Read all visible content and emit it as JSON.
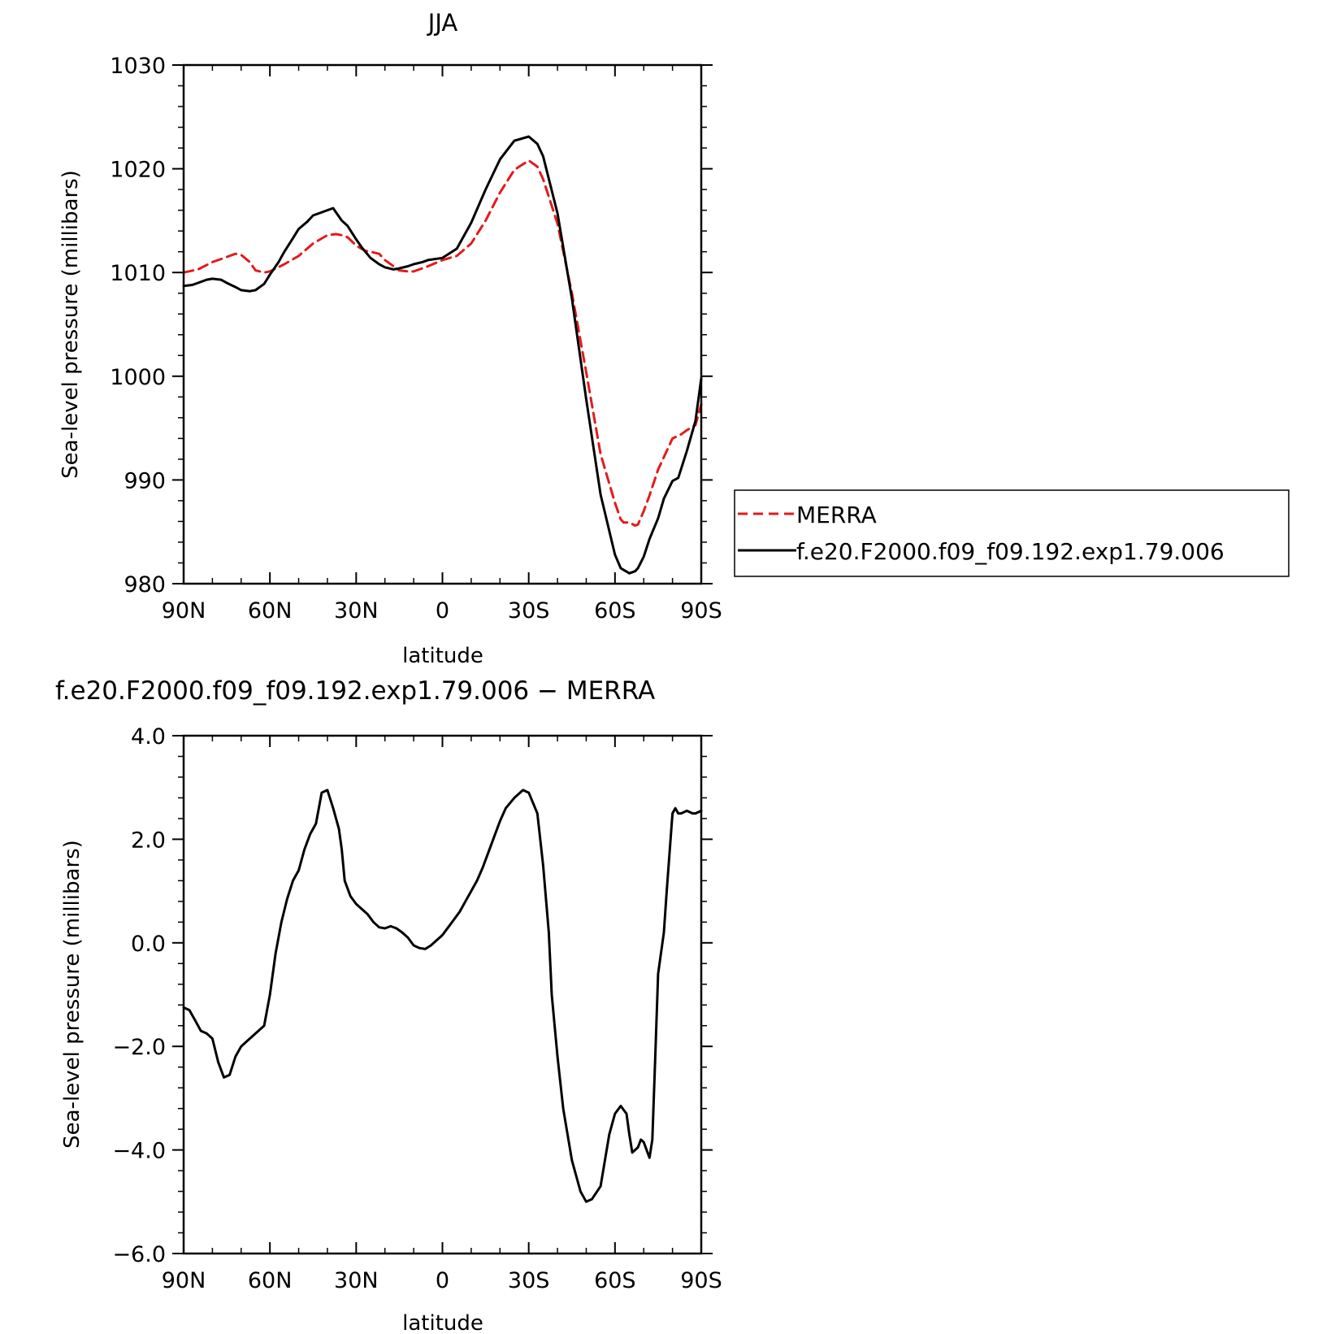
{
  "chart_data": [
    {
      "type": "line",
      "title": "JJA",
      "xlabel": "latitude",
      "ylabel": "Sea-level pressure (millibars)",
      "xlim": [
        -90,
        90
      ],
      "ylim": [
        980,
        1030
      ],
      "x_ticks": [
        -90,
        -60,
        -30,
        0,
        30,
        60,
        90
      ],
      "x_tick_labels": [
        "90N",
        "60N",
        "30N",
        "0",
        "30S",
        "60S",
        "90S"
      ],
      "y_ticks": [
        980,
        990,
        1000,
        1010,
        1020,
        1030
      ],
      "y_tick_labels": [
        "980",
        "990",
        "1000",
        "1010",
        "1020",
        "1030"
      ],
      "grid": false,
      "legend_position": "right",
      "series": [
        {
          "name": "MERRA",
          "color": "#e41a1c",
          "style": "dashed",
          "x": [
            -90,
            -85,
            -80,
            -75,
            -72,
            -70,
            -67,
            -65,
            -62,
            -60,
            -55,
            -50,
            -45,
            -40,
            -37,
            -35,
            -33,
            -30,
            -27,
            -25,
            -22,
            -20,
            -17,
            -15,
            -12,
            -10,
            -5,
            0,
            5,
            10,
            15,
            20,
            25,
            30,
            33,
            35,
            40,
            45,
            50,
            55,
            60,
            62,
            63,
            65,
            67,
            68,
            70,
            72,
            75,
            80,
            83,
            85,
            88,
            90
          ],
          "values": [
            1010.0,
            1010.3,
            1011.0,
            1011.5,
            1011.8,
            1011.7,
            1011.0,
            1010.2,
            1010.0,
            1010.1,
            1010.8,
            1011.6,
            1012.8,
            1013.6,
            1013.7,
            1013.6,
            1013.4,
            1012.6,
            1012.1,
            1012.0,
            1011.8,
            1011.2,
            1010.6,
            1010.2,
            1010.1,
            1010.1,
            1010.6,
            1011.2,
            1011.6,
            1012.8,
            1015.0,
            1017.7,
            1019.9,
            1020.8,
            1020.2,
            1019.0,
            1014.7,
            1008.0,
            1000.4,
            992.5,
            987.8,
            986.2,
            985.9,
            985.9,
            985.6,
            985.7,
            987.0,
            988.5,
            991.0,
            994.0,
            994.4,
            994.8,
            995.3,
            997.3
          ]
        },
        {
          "name": "f.e20.F2000.f09_f09.192.exp1.79.006",
          "color": "#000000",
          "style": "solid",
          "x": [
            -90,
            -87,
            -85,
            -82,
            -80,
            -77,
            -75,
            -72,
            -70,
            -67,
            -65,
            -62,
            -60,
            -57,
            -55,
            -52,
            -50,
            -47,
            -45,
            -43,
            -40,
            -38,
            -35,
            -33,
            -30,
            -28,
            -25,
            -22,
            -20,
            -17,
            -15,
            -12,
            -10,
            -7,
            -5,
            0,
            5,
            10,
            15,
            20,
            25,
            30,
            33,
            35,
            40,
            45,
            50,
            55,
            60,
            62,
            65,
            67,
            68,
            70,
            72,
            75,
            77,
            80,
            82,
            85,
            88,
            90
          ],
          "values": [
            1008.7,
            1008.8,
            1009.0,
            1009.3,
            1009.4,
            1009.3,
            1009.0,
            1008.6,
            1008.3,
            1008.2,
            1008.3,
            1008.9,
            1009.8,
            1011.0,
            1012.0,
            1013.3,
            1014.2,
            1014.9,
            1015.5,
            1015.7,
            1016.0,
            1016.2,
            1015.0,
            1014.5,
            1013.2,
            1012.4,
            1011.4,
            1010.8,
            1010.5,
            1010.3,
            1010.4,
            1010.6,
            1010.8,
            1011.0,
            1011.2,
            1011.4,
            1012.3,
            1014.8,
            1018.0,
            1020.9,
            1022.7,
            1023.1,
            1022.4,
            1021.2,
            1015.7,
            1007.5,
            997.8,
            988.6,
            982.8,
            981.5,
            981.0,
            981.2,
            981.5,
            982.6,
            984.3,
            986.3,
            988.2,
            989.9,
            990.2,
            992.8,
            995.7,
            999.8
          ]
        }
      ]
    },
    {
      "type": "line",
      "title": "f.e20.F2000.f09_f09.192.exp1.79.006 − MERRA",
      "xlabel": "latitude",
      "ylabel": "Sea-level pressure (millibars)",
      "xlim": [
        -90,
        90
      ],
      "ylim": [
        -6.0,
        4.0
      ],
      "x_ticks": [
        -90,
        -60,
        -30,
        0,
        30,
        60,
        90
      ],
      "x_tick_labels": [
        "90N",
        "60N",
        "30N",
        "0",
        "30S",
        "60S",
        "90S"
      ],
      "y_ticks": [
        -6.0,
        -4.0,
        -2.0,
        0.0,
        2.0,
        4.0
      ],
      "y_tick_labels": [
        "−6.0",
        "−4.0",
        "−2.0",
        "0.0",
        "2.0",
        "4.0"
      ],
      "grid": false,
      "series": [
        {
          "color": "#000000",
          "style": "solid",
          "x": [
            -90,
            -88,
            -86,
            -84,
            -82,
            -80,
            -78,
            -76,
            -74,
            -72,
            -70,
            -68,
            -66,
            -64,
            -62,
            -60,
            -58,
            -56,
            -54,
            -52,
            -50,
            -48,
            -46,
            -44,
            -42,
            -40,
            -38,
            -36,
            -35,
            -34,
            -32,
            -30,
            -28,
            -26,
            -24,
            -22,
            -20,
            -18,
            -16,
            -14,
            -12,
            -10,
            -8,
            -6,
            -4,
            -2,
            0,
            2,
            4,
            6,
            8,
            10,
            12,
            14,
            16,
            18,
            20,
            22,
            25,
            28,
            30,
            33,
            35,
            37,
            38,
            40,
            42,
            45,
            48,
            50,
            52,
            55,
            58,
            60,
            62,
            64,
            65,
            66,
            68,
            69,
            70,
            72,
            73,
            74,
            75,
            77,
            78,
            80,
            81,
            82,
            83,
            85,
            87,
            88,
            90
          ],
          "values": [
            -1.25,
            -1.3,
            -1.5,
            -1.7,
            -1.75,
            -1.85,
            -2.3,
            -2.6,
            -2.55,
            -2.2,
            -2.0,
            -1.9,
            -1.8,
            -1.7,
            -1.6,
            -1.0,
            -0.2,
            0.4,
            0.85,
            1.2,
            1.4,
            1.8,
            2.1,
            2.3,
            2.9,
            2.95,
            2.6,
            2.2,
            1.8,
            1.2,
            0.9,
            0.75,
            0.65,
            0.55,
            0.4,
            0.3,
            0.28,
            0.32,
            0.28,
            0.2,
            0.1,
            -0.05,
            -0.1,
            -0.12,
            -0.05,
            0.05,
            0.15,
            0.3,
            0.45,
            0.6,
            0.8,
            1.0,
            1.2,
            1.45,
            1.75,
            2.05,
            2.35,
            2.6,
            2.8,
            2.95,
            2.9,
            2.5,
            1.5,
            0.2,
            -1.0,
            -2.2,
            -3.2,
            -4.2,
            -4.8,
            -5.0,
            -4.95,
            -4.7,
            -3.7,
            -3.3,
            -3.15,
            -3.3,
            -3.7,
            -4.05,
            -3.95,
            -3.8,
            -3.85,
            -4.15,
            -3.8,
            -2.2,
            -0.6,
            0.2,
            1.0,
            2.5,
            2.6,
            2.5,
            2.5,
            2.55,
            2.5,
            2.5,
            2.55
          ]
        }
      ]
    }
  ]
}
